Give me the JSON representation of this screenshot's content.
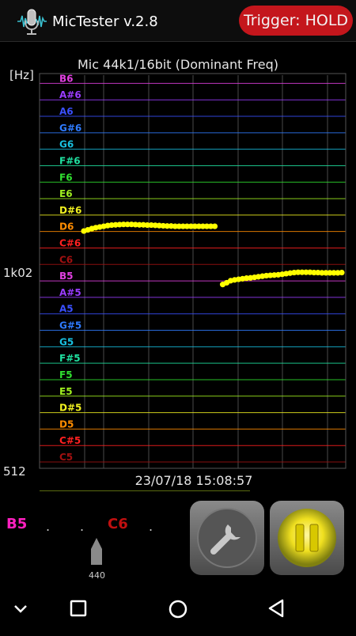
{
  "app": {
    "title": "MicTester v.2.8",
    "trigger_label": "Trigger: HOLD"
  },
  "chart": {
    "title": "Mic 44k1/16bit (Dominant Freq)",
    "y_unit": "[Hz]",
    "y_ticks": [
      "1k02",
      "512"
    ],
    "timestamp": "23/07/18 15:08:57",
    "colors": {
      "plot_bg": "#000000",
      "vertical_grid": "#4a4a4a",
      "trace": "#ffff00",
      "frame": "#555555"
    }
  },
  "chart_data": {
    "type": "scatter",
    "title": "Mic 44k1/16bit (Dominant Freq)",
    "ylabel": "[Hz]",
    "yscale": "log",
    "ylim": [
      512,
      2048
    ],
    "y_ticks": [
      {
        "label": "1k02",
        "value": 1024
      },
      {
        "label": "512",
        "value": 512
      }
    ],
    "note_lines": [
      {
        "label": "B6",
        "color": "#e040e0"
      },
      {
        "label": "A#6",
        "color": "#9a3cff"
      },
      {
        "label": "A6",
        "color": "#3a50ff"
      },
      {
        "label": "G#6",
        "color": "#2f7bff"
      },
      {
        "label": "G6",
        "color": "#19c0e0"
      },
      {
        "label": "F#6",
        "color": "#20e0a0"
      },
      {
        "label": "F6",
        "color": "#30e030"
      },
      {
        "label": "E6",
        "color": "#a0f020"
      },
      {
        "label": "D#6",
        "color": "#f0f020"
      },
      {
        "label": "D6",
        "color": "#ff8c00"
      },
      {
        "label": "C#6",
        "color": "#ff2020"
      },
      {
        "label": "C6",
        "color": "#a01010"
      },
      {
        "label": "B5",
        "color": "#e040e0"
      },
      {
        "label": "A#5",
        "color": "#9a3cff"
      },
      {
        "label": "A5",
        "color": "#3a50ff"
      },
      {
        "label": "G#5",
        "color": "#2f7bff"
      },
      {
        "label": "G5",
        "color": "#19c0e0"
      },
      {
        "label": "F#5",
        "color": "#20e0a0"
      },
      {
        "label": "F5",
        "color": "#30e030"
      },
      {
        "label": "E5",
        "color": "#a0f020"
      },
      {
        "label": "D#5",
        "color": "#f0f020"
      },
      {
        "label": "D5",
        "color": "#ff8c00"
      },
      {
        "label": "C#5",
        "color": "#ff2020"
      },
      {
        "label": "C5",
        "color": "#a01010"
      }
    ],
    "series": [
      {
        "points": [
          [
            0,
            1182
          ],
          [
            1,
            1187
          ],
          [
            2,
            1192
          ],
          [
            3,
            1196
          ],
          [
            4,
            1199
          ],
          [
            5,
            1202
          ],
          [
            6,
            1205
          ],
          [
            7,
            1207
          ],
          [
            8,
            1208
          ],
          [
            9,
            1209
          ],
          [
            10,
            1210
          ],
          [
            11,
            1210
          ],
          [
            12,
            1210
          ],
          [
            13,
            1209
          ],
          [
            14,
            1208
          ],
          [
            15,
            1208
          ],
          [
            16,
            1207
          ],
          [
            17,
            1207
          ],
          [
            18,
            1206
          ],
          [
            19,
            1205
          ],
          [
            20,
            1204
          ],
          [
            21,
            1203
          ],
          [
            22,
            1203
          ],
          [
            23,
            1202
          ],
          [
            24,
            1202
          ],
          [
            25,
            1202
          ],
          [
            26,
            1202
          ],
          [
            27,
            1202
          ],
          [
            28,
            1202
          ],
          [
            29,
            1202
          ],
          [
            30,
            1202
          ],
          [
            31,
            1202
          ],
          [
            32,
            1202
          ],
          [
            33,
            1202
          ]
        ]
      },
      {
        "points": [
          [
            35,
            979
          ],
          [
            36,
            985
          ],
          [
            37,
            992
          ],
          [
            38,
            995
          ],
          [
            39,
            997
          ],
          [
            40,
            999
          ],
          [
            41,
            1001
          ],
          [
            42,
            1002
          ],
          [
            43,
            1004
          ],
          [
            44,
            1006
          ],
          [
            45,
            1008
          ],
          [
            46,
            1010
          ],
          [
            47,
            1011
          ],
          [
            48,
            1012
          ],
          [
            49,
            1013
          ],
          [
            50,
            1015
          ],
          [
            51,
            1017
          ],
          [
            52,
            1019
          ],
          [
            53,
            1021
          ],
          [
            54,
            1022
          ],
          [
            55,
            1022
          ],
          [
            56,
            1022
          ],
          [
            57,
            1022
          ],
          [
            58,
            1021
          ],
          [
            59,
            1021
          ],
          [
            60,
            1020
          ],
          [
            61,
            1020
          ],
          [
            62,
            1020
          ],
          [
            63,
            1020
          ],
          [
            64,
            1020
          ],
          [
            65,
            1021
          ]
        ]
      }
    ]
  },
  "tuner": {
    "note_left": "B5",
    "note_center": "C6",
    "dots": [
      ".",
      ".",
      "."
    ],
    "reference": "440",
    "colors": {
      "note_left": "#ff20c0",
      "note_center": "#c01010"
    }
  },
  "controls": {
    "tools_icon": "wrench-icon",
    "pause_icon": "pause-icon"
  },
  "navbar": {
    "icons": [
      "chevron-down-icon",
      "square-icon",
      "circle-icon",
      "triangle-back-icon"
    ]
  }
}
